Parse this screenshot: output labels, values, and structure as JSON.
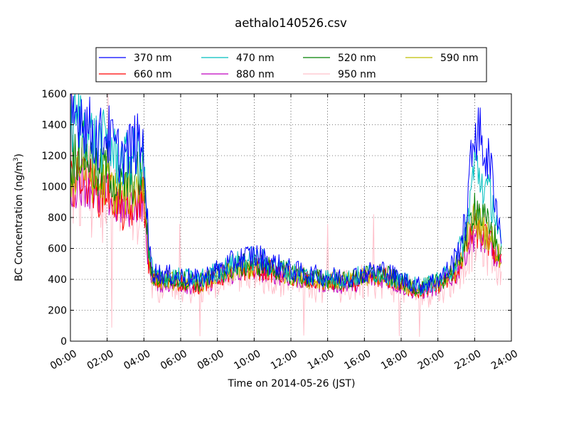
{
  "chart_data": {
    "type": "line",
    "title": "aethalo140526.csv",
    "xlabel": "Time on 2014-05-26 (JST)",
    "ylabel": {
      "main": "BC Concentration (ng/m",
      "sup": "3",
      "close": ")"
    },
    "xlim": [
      "00:00",
      "24:00"
    ],
    "ylim": [
      0,
      1600
    ],
    "grid": true,
    "grid_style": "dotted",
    "legend_placement": "top (above plot)",
    "x_ticks": [
      "00:00",
      "02:00",
      "04:00",
      "06:00",
      "08:00",
      "10:00",
      "12:00",
      "14:00",
      "16:00",
      "18:00",
      "20:00",
      "22:00",
      "24:00"
    ],
    "y_ticks": [
      "0",
      "200",
      "400",
      "600",
      "800",
      "1000",
      "1200",
      "1400",
      "1600"
    ],
    "x_hours": [
      0,
      0.5,
      1,
      1.5,
      2,
      2.5,
      3,
      3.5,
      4,
      4.25,
      4.5,
      5,
      6,
      7,
      8,
      9,
      10,
      11,
      12,
      13,
      14,
      15,
      16,
      17,
      18,
      19,
      20,
      20.5,
      21,
      21.5,
      22,
      22.5,
      23,
      23.5
    ],
    "series": [
      {
        "name": "370 nm",
        "color": "#0000ff",
        "values": [
          1400,
          1500,
          1380,
          1300,
          1350,
          1220,
          1200,
          1280,
          1250,
          620,
          450,
          430,
          420,
          400,
          460,
          520,
          560,
          500,
          460,
          430,
          420,
          410,
          440,
          460,
          400,
          360,
          400,
          450,
          550,
          750,
          1400,
          1250,
          1050,
          600
        ]
      },
      {
        "name": "470 nm",
        "color": "#00bfbf",
        "values": [
          1380,
          1450,
          1340,
          1280,
          1300,
          1180,
          1160,
          1200,
          1180,
          600,
          440,
          420,
          410,
          400,
          450,
          500,
          540,
          490,
          450,
          420,
          410,
          400,
          430,
          450,
          390,
          350,
          390,
          430,
          520,
          700,
          1150,
          1000,
          900,
          560
        ]
      },
      {
        "name": "520 nm",
        "color": "#008000",
        "values": [
          1150,
          1250,
          1200,
          1050,
          1150,
          1000,
          1020,
          1050,
          1100,
          560,
          420,
          400,
          400,
          380,
          430,
          480,
          500,
          470,
          440,
          410,
          400,
          390,
          420,
          440,
          380,
          340,
          380,
          420,
          480,
          650,
          900,
          780,
          700,
          520
        ]
      },
      {
        "name": "590 nm",
        "color": "#bfbf00",
        "values": [
          1050,
          1150,
          1100,
          1000,
          1050,
          950,
          950,
          980,
          1020,
          540,
          410,
          390,
          390,
          370,
          420,
          460,
          480,
          460,
          430,
          400,
          390,
          380,
          410,
          430,
          370,
          330,
          370,
          410,
          460,
          620,
          800,
          720,
          650,
          500
        ]
      },
      {
        "name": "660 nm",
        "color": "#ff0000",
        "values": [
          1000,
          1080,
          1050,
          950,
          980,
          900,
          800,
          880,
          950,
          520,
          400,
          380,
          380,
          360,
          410,
          450,
          470,
          450,
          420,
          390,
          380,
          370,
          400,
          420,
          360,
          320,
          360,
          400,
          440,
          600,
          720,
          680,
          600,
          480
        ]
      },
      {
        "name": "880 nm",
        "color": "#bf00bf",
        "values": [
          980,
          1050,
          1020,
          920,
          950,
          880,
          850,
          900,
          920,
          500,
          390,
          370,
          370,
          350,
          400,
          440,
          460,
          440,
          410,
          380,
          370,
          360,
          390,
          410,
          350,
          310,
          350,
          390,
          430,
          580,
          700,
          650,
          580,
          460
        ]
      },
      {
        "name": "950 nm",
        "color": "#ffc0cb",
        "values": [
          950,
          1020,
          1000,
          900,
          930,
          860,
          830,
          880,
          900,
          490,
          380,
          360,
          360,
          340,
          390,
          430,
          450,
          430,
          400,
          370,
          360,
          350,
          380,
          400,
          340,
          300,
          340,
          380,
          420,
          570,
          690,
          640,
          570,
          450
        ]
      }
    ]
  }
}
